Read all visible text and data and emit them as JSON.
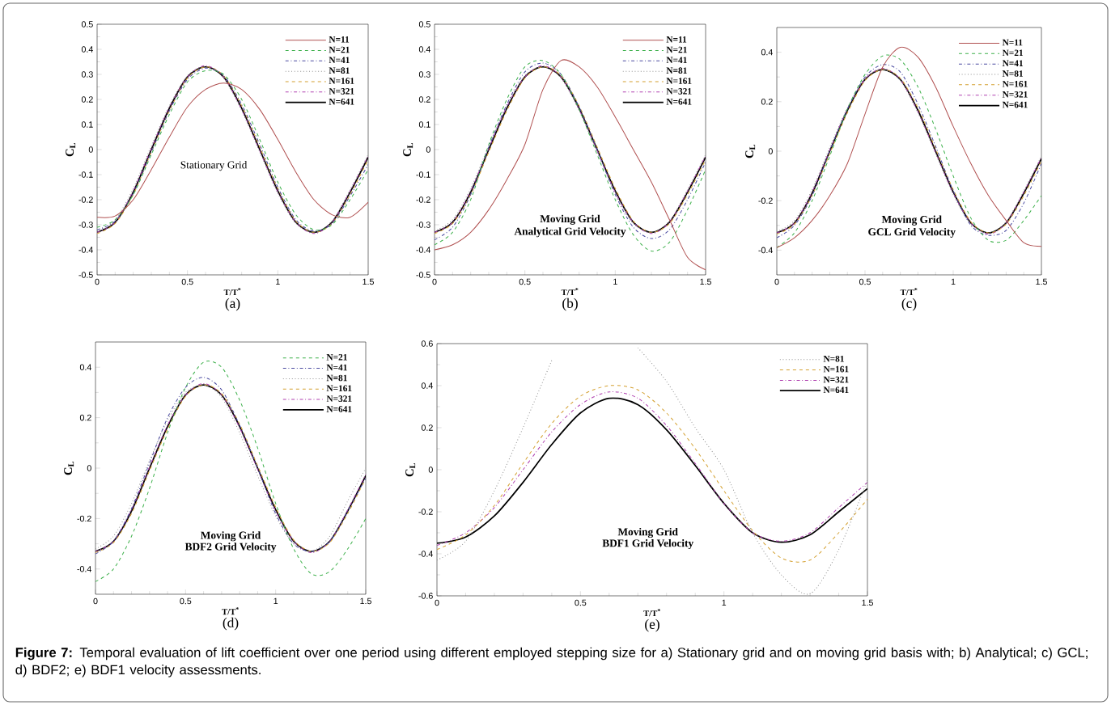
{
  "chart_data": [
    {
      "type": "line",
      "title": "(a)",
      "xlabel": "T/T$^{*}$",
      "ylabel": "C$_{L}$",
      "xlim": [
        0,
        1.5
      ],
      "ylim": [
        -0.5,
        0.5
      ],
      "xticks": [
        0,
        0.5,
        1,
        1.5
      ],
      "yticks": [
        -0.5,
        -0.4,
        -0.3,
        -0.2,
        -0.1,
        0,
        0.1,
        0.2,
        0.3,
        0.4,
        0.5
      ],
      "legend": "top right",
      "annotations": [
        "Stationary Grid"
      ],
      "x": [
        0,
        0.1,
        0.2,
        0.3,
        0.4,
        0.5,
        0.6,
        0.7,
        0.8,
        0.9,
        1.0,
        1.1,
        1.2,
        1.3,
        1.4,
        1.5
      ],
      "series": [
        {
          "name": "N=11",
          "color": "#b05050",
          "line_style": "solid",
          "values": [
            -0.27,
            -0.265,
            -0.2,
            -0.08,
            0.05,
            0.17,
            0.24,
            0.265,
            0.24,
            0.16,
            0.04,
            -0.09,
            -0.2,
            -0.26,
            -0.27,
            -0.21
          ]
        },
        {
          "name": "N=21",
          "color": "#3cb04a",
          "line_style": "dashed",
          "values": [
            -0.31,
            -0.28,
            -0.18,
            -0.02,
            0.14,
            0.27,
            0.315,
            0.3,
            0.2,
            0.04,
            -0.13,
            -0.26,
            -0.32,
            -0.3,
            -0.2,
            -0.08
          ]
        },
        {
          "name": "N=41",
          "color": "#4a4aa0",
          "line_style": "dashdot",
          "values": [
            -0.32,
            -0.285,
            -0.175,
            -0.01,
            0.155,
            0.28,
            0.325,
            0.295,
            0.18,
            0.02,
            -0.15,
            -0.28,
            -0.325,
            -0.295,
            -0.185,
            -0.06
          ]
        },
        {
          "name": "N=81",
          "color": "#909090",
          "line_style": "dotted",
          "values": [
            -0.325,
            -0.28,
            -0.155,
            0.015,
            0.175,
            0.295,
            0.33,
            0.285,
            0.155,
            -0.01,
            -0.175,
            -0.295,
            -0.33,
            -0.285,
            -0.16,
            -0.02
          ]
        },
        {
          "name": "N=161",
          "color": "#d4a030",
          "line_style": "dashed",
          "values": [
            -0.335,
            -0.295,
            -0.18,
            -0.01,
            0.155,
            0.285,
            0.33,
            0.295,
            0.175,
            0.01,
            -0.155,
            -0.285,
            -0.33,
            -0.295,
            -0.18,
            -0.04
          ]
        },
        {
          "name": "N=321",
          "color": "#b040b0",
          "line_style": "dashdot",
          "values": [
            -0.33,
            -0.29,
            -0.165,
            0.005,
            0.17,
            0.29,
            0.335,
            0.29,
            0.16,
            -0.005,
            -0.17,
            -0.29,
            -0.335,
            -0.29,
            -0.165,
            -0.025
          ]
        },
        {
          "name": "N=641",
          "color": "#000000",
          "line_style": "solid",
          "values": [
            -0.33,
            -0.29,
            -0.17,
            0.0,
            0.165,
            0.29,
            0.33,
            0.29,
            0.165,
            0.0,
            -0.165,
            -0.29,
            -0.33,
            -0.29,
            -0.17,
            -0.03
          ]
        }
      ]
    },
    {
      "type": "line",
      "title": "(b)",
      "xlabel": "T/T$^{*}$",
      "ylabel": "C$_{L}$",
      "xlim": [
        0,
        1.5
      ],
      "ylim": [
        -0.5,
        0.5
      ],
      "xticks": [
        0,
        0.5,
        1,
        1.5
      ],
      "yticks": [
        -0.5,
        -0.4,
        -0.3,
        -0.2,
        -0.1,
        0,
        0.1,
        0.2,
        0.3,
        0.4,
        0.5
      ],
      "legend": "top right",
      "annotations": [
        "Moving Grid",
        "Analytical Grid Velocity"
      ],
      "x": [
        0,
        0.1,
        0.2,
        0.3,
        0.4,
        0.5,
        0.6,
        0.7,
        0.8,
        0.9,
        1.0,
        1.1,
        1.2,
        1.3,
        1.4,
        1.5
      ],
      "series": [
        {
          "name": "N=11",
          "color": "#b05050",
          "line_style": "solid",
          "values": [
            -0.4,
            -0.38,
            -0.33,
            -0.24,
            -0.12,
            0.02,
            0.24,
            0.355,
            0.33,
            0.25,
            0.13,
            0.0,
            -0.13,
            -0.28,
            -0.43,
            -0.48
          ]
        },
        {
          "name": "N=21",
          "color": "#3cb04a",
          "line_style": "dashed",
          "values": [
            -0.38,
            -0.33,
            -0.2,
            0.02,
            0.2,
            0.33,
            0.355,
            0.3,
            0.16,
            -0.02,
            -0.2,
            -0.34,
            -0.405,
            -0.37,
            -0.24,
            -0.08
          ]
        },
        {
          "name": "N=41",
          "color": "#4a4aa0",
          "line_style": "dashdot",
          "values": [
            -0.36,
            -0.31,
            -0.18,
            0.01,
            0.18,
            0.31,
            0.345,
            0.3,
            0.17,
            0.0,
            -0.18,
            -0.31,
            -0.355,
            -0.32,
            -0.2,
            -0.05
          ]
        },
        {
          "name": "N=81",
          "color": "#909090",
          "line_style": "dotted",
          "values": [
            -0.325,
            -0.28,
            -0.155,
            0.015,
            0.175,
            0.295,
            0.33,
            0.285,
            0.155,
            -0.01,
            -0.175,
            -0.295,
            -0.33,
            -0.285,
            -0.16,
            -0.02
          ]
        },
        {
          "name": "N=161",
          "color": "#d4a030",
          "line_style": "dashed",
          "values": [
            -0.335,
            -0.295,
            -0.18,
            -0.01,
            0.155,
            0.285,
            0.33,
            0.295,
            0.175,
            0.01,
            -0.155,
            -0.285,
            -0.33,
            -0.295,
            -0.18,
            -0.04
          ]
        },
        {
          "name": "N=321",
          "color": "#b040b0",
          "line_style": "dashdot",
          "values": [
            -0.33,
            -0.29,
            -0.165,
            0.005,
            0.17,
            0.29,
            0.335,
            0.29,
            0.16,
            -0.005,
            -0.17,
            -0.29,
            -0.335,
            -0.29,
            -0.165,
            -0.025
          ]
        },
        {
          "name": "N=641",
          "color": "#000000",
          "line_style": "solid",
          "values": [
            -0.33,
            -0.29,
            -0.17,
            0.0,
            0.165,
            0.29,
            0.33,
            0.29,
            0.165,
            0.0,
            -0.165,
            -0.29,
            -0.33,
            -0.29,
            -0.17,
            -0.03
          ]
        }
      ]
    },
    {
      "type": "line",
      "title": "(c)",
      "xlabel": "T/T$^{*}$",
      "ylabel": "C$_{L}$",
      "xlim": [
        0,
        1.5
      ],
      "ylim": [
        -0.5,
        0.5
      ],
      "xticks": [
        0,
        0.5,
        1,
        1.5
      ],
      "yticks": [
        -0.4,
        -0.2,
        0,
        0.2,
        0.4
      ],
      "legend": "top right",
      "annotations": [
        "Moving Grid",
        "GCL Grid Velocity"
      ],
      "x": [
        0,
        0.1,
        0.2,
        0.3,
        0.4,
        0.5,
        0.6,
        0.7,
        0.8,
        0.9,
        1.0,
        1.1,
        1.2,
        1.3,
        1.4,
        1.5
      ],
      "series": [
        {
          "name": "N=11",
          "color": "#b05050",
          "line_style": "solid",
          "values": [
            -0.39,
            -0.35,
            -0.28,
            -0.18,
            -0.05,
            0.15,
            0.34,
            0.42,
            0.38,
            0.26,
            0.1,
            -0.05,
            -0.18,
            -0.28,
            -0.37,
            -0.385
          ]
        },
        {
          "name": "N=21",
          "color": "#3cb04a",
          "line_style": "dashed",
          "values": [
            -0.39,
            -0.33,
            -0.2,
            -0.02,
            0.17,
            0.31,
            0.385,
            0.37,
            0.26,
            0.09,
            -0.1,
            -0.27,
            -0.36,
            -0.36,
            -0.28,
            -0.18
          ]
        },
        {
          "name": "N=41",
          "color": "#4a4aa0",
          "line_style": "dashdot",
          "values": [
            -0.35,
            -0.3,
            -0.18,
            0.0,
            0.17,
            0.3,
            0.35,
            0.32,
            0.19,
            0.02,
            -0.16,
            -0.3,
            -0.34,
            -0.32,
            -0.21,
            -0.05
          ]
        },
        {
          "name": "N=81",
          "color": "#909090",
          "line_style": "dotted",
          "values": [
            -0.325,
            -0.28,
            -0.155,
            0.015,
            0.175,
            0.295,
            0.33,
            0.285,
            0.155,
            -0.01,
            -0.175,
            -0.295,
            -0.33,
            -0.285,
            -0.16,
            -0.02
          ]
        },
        {
          "name": "N=161",
          "color": "#d4a030",
          "line_style": "dashed",
          "values": [
            -0.335,
            -0.295,
            -0.18,
            -0.01,
            0.155,
            0.285,
            0.33,
            0.295,
            0.175,
            0.01,
            -0.155,
            -0.285,
            -0.33,
            -0.295,
            -0.18,
            -0.04
          ]
        },
        {
          "name": "N=321",
          "color": "#b040b0",
          "line_style": "dashdot",
          "values": [
            -0.33,
            -0.29,
            -0.165,
            0.005,
            0.17,
            0.29,
            0.335,
            0.29,
            0.16,
            -0.005,
            -0.17,
            -0.29,
            -0.335,
            -0.29,
            -0.165,
            -0.025
          ]
        },
        {
          "name": "N=641",
          "color": "#000000",
          "line_style": "solid",
          "values": [
            -0.33,
            -0.29,
            -0.17,
            0.0,
            0.165,
            0.29,
            0.33,
            0.29,
            0.165,
            0.0,
            -0.165,
            -0.29,
            -0.33,
            -0.29,
            -0.17,
            -0.03
          ]
        }
      ]
    },
    {
      "type": "line",
      "title": "(d)",
      "xlabel": "T/T$^{*}$",
      "ylabel": "C$_{L}$",
      "xlim": [
        0,
        1.5
      ],
      "ylim": [
        -0.5,
        0.5
      ],
      "xticks": [
        0,
        0.5,
        1,
        1.5
      ],
      "yticks": [
        -0.4,
        -0.2,
        0,
        0.2,
        0.4
      ],
      "legend": "top right",
      "annotations": [
        "Moving Grid",
        "BDF2 Grid Velocity"
      ],
      "x": [
        0,
        0.1,
        0.2,
        0.3,
        0.4,
        0.5,
        0.6,
        0.7,
        0.8,
        0.9,
        1.0,
        1.1,
        1.2,
        1.3,
        1.4,
        1.5
      ],
      "series": [
        {
          "name": "N=21",
          "color": "#3cb04a",
          "line_style": "dashed",
          "values": [
            -0.45,
            -0.4,
            -0.27,
            -0.08,
            0.14,
            0.32,
            0.42,
            0.4,
            0.27,
            0.08,
            -0.14,
            -0.32,
            -0.42,
            -0.41,
            -0.32,
            -0.2
          ]
        },
        {
          "name": "N=41",
          "color": "#4a4aa0",
          "line_style": "dashdot",
          "values": [
            -0.34,
            -0.29,
            -0.16,
            0.02,
            0.2,
            0.32,
            0.36,
            0.31,
            0.17,
            0.0,
            -0.18,
            -0.3,
            -0.33,
            -0.29,
            -0.17,
            -0.04
          ]
        },
        {
          "name": "N=81",
          "color": "#909090",
          "line_style": "dotted",
          "values": [
            -0.32,
            -0.27,
            -0.14,
            0.03,
            0.19,
            0.3,
            0.33,
            0.28,
            0.14,
            -0.03,
            -0.19,
            -0.3,
            -0.33,
            -0.27,
            -0.13,
            0.0
          ]
        },
        {
          "name": "N=161",
          "color": "#d4a030",
          "line_style": "dashed",
          "values": [
            -0.335,
            -0.295,
            -0.18,
            -0.01,
            0.155,
            0.285,
            0.33,
            0.295,
            0.175,
            0.01,
            -0.155,
            -0.285,
            -0.33,
            -0.295,
            -0.18,
            -0.04
          ]
        },
        {
          "name": "N=321",
          "color": "#b040b0",
          "line_style": "dashdot",
          "values": [
            -0.33,
            -0.29,
            -0.165,
            0.005,
            0.17,
            0.29,
            0.335,
            0.29,
            0.16,
            -0.005,
            -0.17,
            -0.29,
            -0.335,
            -0.29,
            -0.165,
            -0.025
          ]
        },
        {
          "name": "N=641",
          "color": "#000000",
          "line_style": "solid",
          "values": [
            -0.33,
            -0.29,
            -0.17,
            0.0,
            0.165,
            0.29,
            0.33,
            0.29,
            0.165,
            0.0,
            -0.165,
            -0.29,
            -0.33,
            -0.29,
            -0.17,
            -0.03
          ]
        }
      ]
    },
    {
      "type": "line",
      "title": "(e)",
      "xlabel": "T/T$^{*}$",
      "ylabel": "C$_{L}$",
      "xlim": [
        0,
        1.5
      ],
      "ylim": [
        -0.6,
        0.6
      ],
      "xticks": [
        0,
        0.5,
        1,
        1.5
      ],
      "yticks": [
        -0.6,
        -0.4,
        -0.2,
        0,
        0.2,
        0.4,
        0.6
      ],
      "legend": "top right",
      "annotations": [
        "Moving Grid",
        "BDF1 Grid Velocity"
      ],
      "x": [
        0,
        0.1,
        0.2,
        0.3,
        0.4,
        0.5,
        0.6,
        0.7,
        0.8,
        0.9,
        1.0,
        1.1,
        1.2,
        1.3,
        1.4,
        1.5
      ],
      "series": [
        {
          "name": "N=81",
          "color": "#909090",
          "line_style": "dotted",
          "values": [
            -0.43,
            -0.34,
            -0.1,
            0.2,
            0.52,
            null,
            null,
            0.58,
            0.42,
            0.2,
            0.0,
            -0.3,
            -0.5,
            -0.59,
            -0.38,
            -0.05
          ]
        },
        {
          "name": "N=161",
          "color": "#d4a030",
          "line_style": "dashed",
          "values": [
            -0.38,
            -0.31,
            -0.17,
            0.03,
            0.22,
            0.35,
            0.4,
            0.38,
            0.27,
            0.1,
            -0.1,
            -0.29,
            -0.42,
            -0.43,
            -0.3,
            -0.14
          ]
        },
        {
          "name": "N=321",
          "color": "#b040b0",
          "line_style": "dashdot",
          "values": [
            -0.36,
            -0.3,
            -0.18,
            0.0,
            0.18,
            0.31,
            0.37,
            0.34,
            0.21,
            0.03,
            -0.16,
            -0.3,
            -0.34,
            -0.3,
            -0.18,
            -0.06
          ]
        },
        {
          "name": "N=641",
          "color": "#000000",
          "line_style": "solid",
          "values": [
            -0.35,
            -0.32,
            -0.22,
            -0.06,
            0.12,
            0.27,
            0.34,
            0.31,
            0.19,
            0.02,
            -0.16,
            -0.3,
            -0.345,
            -0.31,
            -0.2,
            -0.09
          ]
        }
      ]
    },
    {
      "type": "other",
      "annotations": [
        "**Figure 7:** Temporal evaluation of lift coefficient over one period using different employed stepping size for a) Stationary grid and on moving grid basis with; b) Analytical; c) GCL; d) BDF2; e) BDF1 velocity assessments."
      ]
    }
  ]
}
